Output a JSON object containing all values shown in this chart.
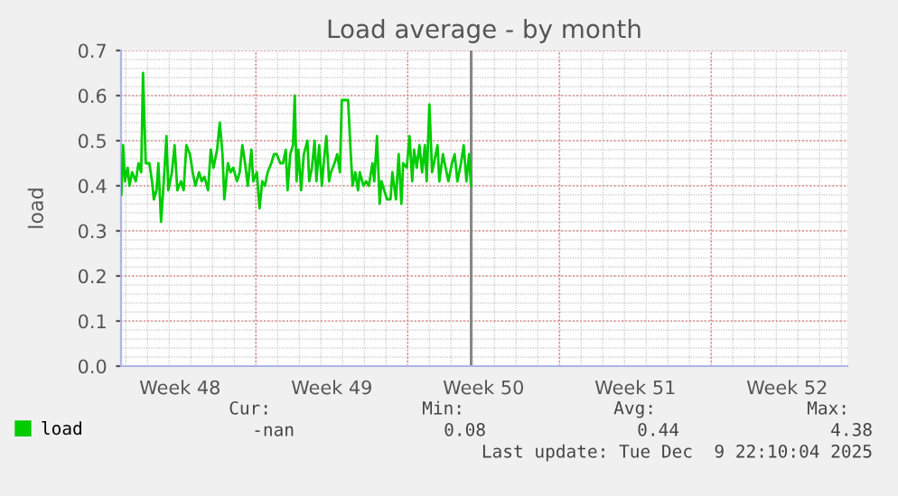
{
  "chart_data": {
    "type": "line",
    "title": "Load average - by month",
    "ylabel": "load",
    "x": [
      "2025-11-23T19:00",
      "2025-11-23T21:00",
      "2025-11-23T23:00",
      "2025-11-24T02:00",
      "2025-11-24T04:00",
      "2025-11-24T07:00",
      "2025-11-24T11:00",
      "2025-11-24T14:00",
      "2025-11-24T17:00",
      "2025-11-24T19:00",
      "2025-11-24T22:00",
      "2025-11-25T02:00",
      "2025-11-25T05:00",
      "2025-11-25T07:00",
      "2025-11-25T10:00",
      "2025-11-25T12:00",
      "2025-11-25T15:00",
      "2025-11-25T18:00",
      "2025-11-25T21:00",
      "2025-11-25T23:00",
      "2025-11-26T03:00",
      "2025-11-26T06:00",
      "2025-11-26T09:00",
      "2025-11-26T13:00",
      "2025-11-26T16:00",
      "2025-11-26T19:00",
      "2025-11-26T23:00",
      "2025-11-27T02:00",
      "2025-11-27T05:00",
      "2025-11-27T09:00",
      "2025-11-27T12:00",
      "2025-11-27T15:00",
      "2025-11-27T19:00",
      "2025-11-27T22:00",
      "2025-11-28T01:00",
      "2025-11-28T05:00",
      "2025-11-28T08:00",
      "2025-11-28T11:00",
      "2025-11-28T13:00",
      "2025-11-28T17:00",
      "2025-11-28T20:00",
      "2025-11-28T23:00",
      "2025-11-29T03:00",
      "2025-11-29T06:00",
      "2025-11-29T09:00",
      "2025-11-29T12:00",
      "2025-11-29T15:00",
      "2025-11-29T19:00",
      "2025-11-29T21:00",
      "2025-11-30T01:00",
      "2025-11-30T04:00",
      "2025-11-30T07:00",
      "2025-11-30T10:00",
      "2025-11-30T13:00",
      "2025-11-30T17:00",
      "2025-11-30T20:00",
      "2025-11-30T23:00",
      "2025-12-01T03:00",
      "2025-12-01T06:00",
      "2025-12-01T09:00",
      "2025-12-01T11:00",
      "2025-12-01T14:00",
      "2025-12-01T17:00",
      "2025-12-01T19:00",
      "2025-12-01T21:00",
      "2025-12-01T23:00",
      "2025-12-02T02:00",
      "2025-12-02T05:00",
      "2025-12-02T09:00",
      "2025-12-02T11:00",
      "2025-12-02T14:00",
      "2025-12-02T17:00",
      "2025-12-02T19:00",
      "2025-12-02T22:00",
      "2025-12-03T01:00",
      "2025-12-03T03:00",
      "2025-12-03T06:00",
      "2025-12-03T09:00",
      "2025-12-03T11:00",
      "2025-12-03T15:00",
      "2025-12-03T18:00",
      "2025-12-03T21:00",
      "2025-12-03T23:00",
      "2025-12-04T03:00",
      "2025-12-04T06:00",
      "2025-12-04T09:00",
      "2025-12-04T11:00",
      "2025-12-04T14:00",
      "2025-12-04T17:00",
      "2025-12-04T19:00",
      "2025-12-04T23:00",
      "2025-12-05T02:00",
      "2025-12-05T05:00",
      "2025-12-05T09:00",
      "2025-12-05T11:00",
      "2025-12-05T14:00",
      "2025-12-05T17:00",
      "2025-12-05T19:00",
      "2025-12-05T22:00",
      "2025-12-06T01:00",
      "2025-12-06T05:00",
      "2025-12-06T07:00",
      "2025-12-06T11:00",
      "2025-12-06T14:00",
      "2025-12-06T17:00",
      "2025-12-06T19:00",
      "2025-12-06T23:00",
      "2025-12-07T02:00",
      "2025-12-07T05:00",
      "2025-12-07T07:00",
      "2025-12-07T10:00",
      "2025-12-07T13:00",
      "2025-12-07T16:00",
      "2025-12-07T19:00",
      "2025-12-07T21:00",
      "2025-12-08T00:00",
      "2025-12-08T03:00",
      "2025-12-08T05:00",
      "2025-12-08T09:00",
      "2025-12-08T11:00",
      "2025-12-08T15:00",
      "2025-12-08T18:00",
      "2025-12-08T21:00",
      "2025-12-09T01:00",
      "2025-12-09T04:00",
      "2025-12-09T07:00",
      "2025-12-09T11:00",
      "2025-12-09T14:00",
      "2025-12-09T17:00",
      "2025-12-09T20:00",
      "2025-12-09T22:00"
    ],
    "series": [
      {
        "name": "load",
        "color": "#00cc00",
        "values": [
          0.38,
          0.49,
          0.41,
          0.44,
          0.4,
          0.43,
          0.41,
          0.45,
          0.43,
          0.65,
          0.45,
          0.45,
          0.41,
          0.37,
          0.39,
          0.45,
          0.32,
          0.41,
          0.51,
          0.39,
          0.43,
          0.49,
          0.39,
          0.41,
          0.39,
          0.49,
          0.47,
          0.43,
          0.4,
          0.43,
          0.41,
          0.42,
          0.39,
          0.48,
          0.44,
          0.48,
          0.54,
          0.47,
          0.37,
          0.45,
          0.43,
          0.44,
          0.41,
          0.43,
          0.49,
          0.45,
          0.4,
          0.48,
          0.41,
          0.43,
          0.35,
          0.41,
          0.4,
          0.43,
          0.45,
          0.47,
          0.47,
          0.45,
          0.45,
          0.48,
          0.39,
          0.47,
          0.49,
          0.6,
          0.41,
          0.48,
          0.39,
          0.47,
          0.5,
          0.41,
          0.44,
          0.5,
          0.41,
          0.49,
          0.4,
          0.45,
          0.51,
          0.41,
          0.43,
          0.45,
          0.47,
          0.43,
          0.59,
          0.59,
          0.59,
          0.47,
          0.4,
          0.43,
          0.39,
          0.43,
          0.4,
          0.41,
          0.4,
          0.45,
          0.41,
          0.51,
          0.36,
          0.41,
          0.39,
          0.37,
          0.37,
          0.43,
          0.37,
          0.47,
          0.36,
          0.45,
          0.44,
          0.51,
          0.41,
          0.48,
          0.44,
          0.49,
          0.43,
          0.49,
          0.41,
          0.58,
          0.43,
          0.45,
          0.49,
          0.41,
          0.47,
          0.44,
          0.41,
          0.45,
          0.47,
          0.41,
          0.45,
          0.49,
          0.41,
          0.47,
          0.4
        ]
      }
    ],
    "xlim": [
      "2025-11-23T18:43",
      "2025-12-27T06:43"
    ],
    "xticks": [
      {
        "value": "2025-11-26T12:00",
        "label": "Week 48"
      },
      {
        "value": "2025-11-30",
        "label": null
      },
      {
        "value": "2025-12-03T12:00",
        "label": "Week 49"
      },
      {
        "value": "2025-12-07",
        "label": null
      },
      {
        "value": "2025-12-10T12:00",
        "label": "Week 50"
      },
      {
        "value": "2025-12-14",
        "label": null
      },
      {
        "value": "2025-12-17T12:00",
        "label": "Week 51"
      },
      {
        "value": "2025-12-21",
        "label": null
      },
      {
        "value": "2025-12-24T12:00",
        "label": "Week 52"
      }
    ],
    "ylim": [
      0,
      0.7
    ],
    "yticks": [
      {
        "value": 0,
        "label": "0.0"
      },
      0.1,
      0.2,
      0.3,
      0.4,
      0.5,
      0.6,
      0.7
    ],
    "ref_lines": [
      {
        "axis": "x",
        "value": "2025-12-09T22:10",
        "color": "#808080"
      }
    ],
    "grid": true,
    "legend": "bottom",
    "line_style": "solid",
    "marker": "none",
    "annotations": [
      "Cur:",
      "Min:",
      "Avg:",
      "Max:",
      "-nan",
      "0.08",
      "0.44",
      "4.38",
      "Last update: Tue Dec  9 22:10:04 2025"
    ]
  }
}
